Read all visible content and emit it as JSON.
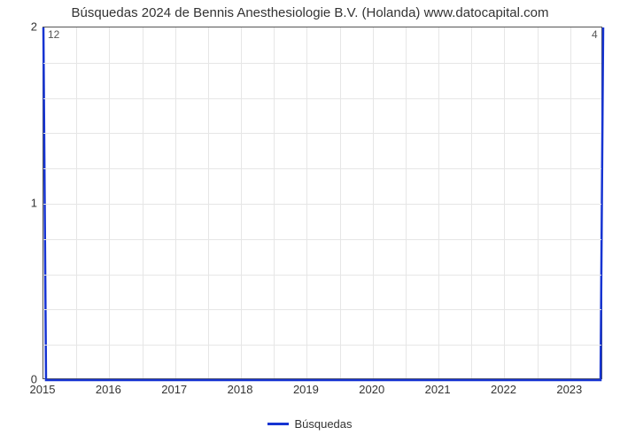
{
  "chart": {
    "type": "line",
    "title": "Búsquedas 2024 de Bennis Anesthesiologie B.V. (Holanda) www.datocapital.com",
    "title_fontsize": 15,
    "title_color": "#333333",
    "background_color": "#ffffff",
    "plot_border_color": "#555555",
    "grid_color": "#e6e6e6",
    "axis_label_color": "#333333",
    "axis_label_fontsize": 13,
    "x": {
      "min": 2015,
      "max": 2023.5,
      "ticks": [
        2015,
        2016,
        2017,
        2018,
        2019,
        2020,
        2021,
        2022,
        2023
      ],
      "minor_gridlines": 1
    },
    "y": {
      "min": 0,
      "max": 2,
      "ticks": [
        0,
        1,
        2
      ],
      "minor_gridlines": 4
    },
    "series": [
      {
        "name": "Búsquedas",
        "label": "Búsquedas",
        "color": "#1634d2",
        "line_width": 2.5,
        "marker": "none",
        "x": [
          2015,
          2015.04,
          2023.46,
          2023.5
        ],
        "y": [
          12,
          0,
          0,
          4
        ],
        "clip_to_plot": true,
        "endpoint_labels": [
          {
            "index": 0,
            "text": "12",
            "dx": 6,
            "dy": 2,
            "anchor": "tl"
          },
          {
            "index": 3,
            "text": "4",
            "dx": -12,
            "dy": 2,
            "anchor": "tl"
          }
        ]
      }
    ],
    "legend": {
      "position": "bottom-center",
      "items": [
        {
          "series": 0
        }
      ]
    }
  }
}
